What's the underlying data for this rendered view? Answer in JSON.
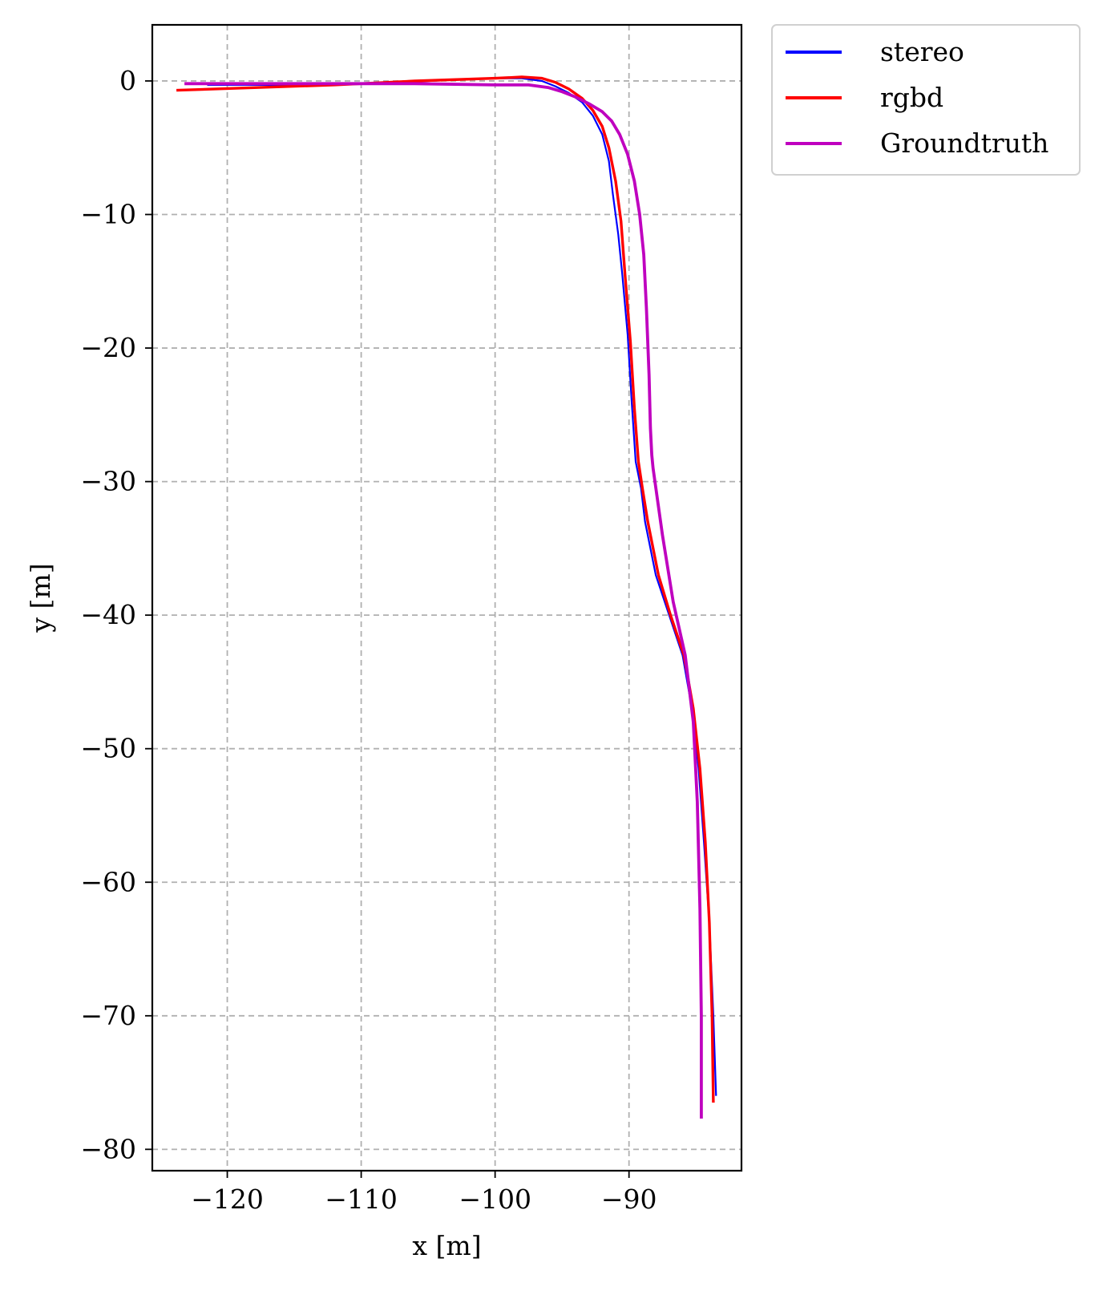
{
  "chart_data": {
    "type": "line",
    "title": "",
    "xlabel": "x [m]",
    "ylabel": "y [m]",
    "xlim": [
      -125.6,
      -81.6
    ],
    "ylim": [
      -81.6,
      4.2
    ],
    "xticks": [
      -120,
      -110,
      -100,
      -90
    ],
    "yticks": [
      0,
      -10,
      -20,
      -30,
      -40,
      -50,
      -60,
      -70,
      -80
    ],
    "xtick_labels": [
      "−120",
      "−110",
      "−100",
      "−90"
    ],
    "ytick_labels": [
      "0",
      "−10",
      "−20",
      "−30",
      "−40",
      "−50",
      "−60",
      "−70",
      "−80"
    ],
    "grid": true,
    "legend_position": "outside-top-right",
    "series": [
      {
        "name": "stereo",
        "color": "#0000ff",
        "x": [
          -121.5,
          -115,
          -110,
          -105,
          -100,
          -98,
          -96.5,
          -95.5,
          -94.5,
          -93.5,
          -92.7,
          -92.0,
          -91.5,
          -91.2,
          -90.8,
          -90.5,
          -90.1,
          -89.8,
          -89.5,
          -89.1,
          -88.8,
          -88.0,
          -87.0,
          -86.0,
          -85.3,
          -84.8,
          -84.4,
          -84.0,
          -83.7,
          -83.5
        ],
        "y": [
          -0.3,
          -0.3,
          -0.2,
          0.0,
          0.2,
          0.2,
          0.0,
          -0.4,
          -0.9,
          -1.6,
          -2.6,
          -4.0,
          -6.0,
          -8.5,
          -11.5,
          -14.5,
          -19.0,
          -24.0,
          -28.5,
          -30.5,
          -33.0,
          -37.0,
          -40.0,
          -43.0,
          -47.0,
          -51.5,
          -57.0,
          -63.0,
          -70.0,
          -76.0
        ]
      },
      {
        "name": "rgbd",
        "color": "#ff0000",
        "x": [
          -123.8,
          -118,
          -112,
          -106,
          -100,
          -98,
          -96.5,
          -95.5,
          -94.5,
          -93.5,
          -92.7,
          -92.0,
          -91.5,
          -91.0,
          -90.6,
          -90.3,
          -89.9,
          -89.6,
          -89.3,
          -89.0,
          -88.6,
          -87.8,
          -86.9,
          -85.9,
          -85.2,
          -84.7,
          -84.3,
          -84.0,
          -83.8,
          -83.7
        ],
        "y": [
          -0.7,
          -0.5,
          -0.3,
          0.0,
          0.2,
          0.3,
          0.2,
          -0.1,
          -0.6,
          -1.3,
          -2.2,
          -3.4,
          -5.0,
          -7.5,
          -10.5,
          -14.5,
          -19.5,
          -24.5,
          -28.5,
          -30.5,
          -33.0,
          -37.0,
          -40.0,
          -43.0,
          -47.0,
          -51.5,
          -57.0,
          -63.0,
          -70.0,
          -76.5
        ]
      },
      {
        "name": "Groundtruth",
        "color": "#bf00bf",
        "x": [
          -123.2,
          -118,
          -112,
          -106,
          -100,
          -97.5,
          -96,
          -95,
          -94,
          -93,
          -92.0,
          -91.3,
          -90.7,
          -90.1,
          -89.6,
          -89.2,
          -88.9,
          -88.7,
          -88.5,
          -88.4,
          -88.3,
          -88.2,
          -87.5,
          -86.7,
          -85.8,
          -85.2,
          -84.9,
          -84.7,
          -84.6,
          -84.6
        ],
        "y": [
          -0.2,
          -0.2,
          -0.2,
          -0.2,
          -0.3,
          -0.3,
          -0.5,
          -0.8,
          -1.2,
          -1.7,
          -2.3,
          -3.0,
          -4.0,
          -5.5,
          -7.5,
          -10.0,
          -13.0,
          -17.0,
          -22.0,
          -26.0,
          -28.0,
          -29.0,
          -34.0,
          -39.0,
          -43.0,
          -48.0,
          -54.0,
          -62.0,
          -70.0,
          -77.7
        ]
      }
    ]
  }
}
